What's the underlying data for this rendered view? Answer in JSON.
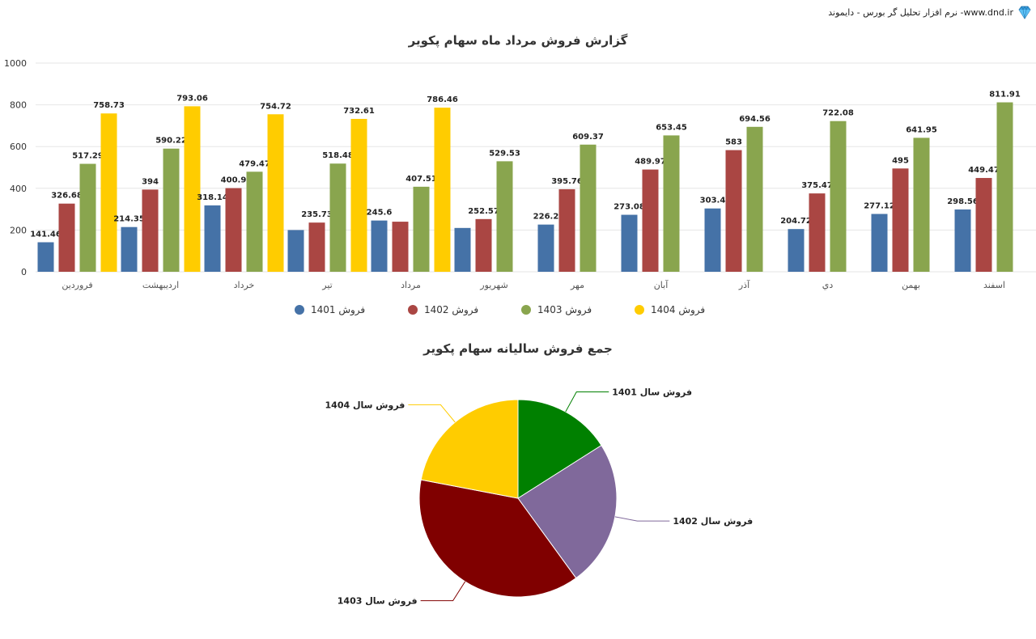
{
  "brand": {
    "text": "نرم افزار تحلیل گر بورس - دایموند -www.dnd.ir",
    "logo_icon": "diamond-icon"
  },
  "colors": {
    "s1401": "#4572a7",
    "s1402": "#aa4643",
    "s1403": "#89a54e",
    "s1404": "#ffcc00",
    "pie1401": "#008000",
    "pie1402": "#80699b",
    "pie1403": "#800000",
    "pie1404": "#ffcc00"
  },
  "chart_data": [
    {
      "type": "bar",
      "title": "گزارش فروش مرداد ماه سهام پکویر",
      "categories": [
        "فروردین",
        "اردیبهشت",
        "خرداد",
        "تیر",
        "مرداد",
        "شهریور",
        "مهر",
        "آبان",
        "آذر",
        "دي",
        "بهمن",
        "اسفند"
      ],
      "series": [
        {
          "name": "فروش 1401",
          "color": "#4572a7",
          "values": [
            141.46,
            214.35,
            318.14,
            200,
            245.6,
            210,
            226.2,
            273.08,
            303.4,
            204.72,
            277.12,
            298.56
          ],
          "labels": [
            "141.46",
            "214.35",
            "318.14",
            "",
            "245.6",
            "",
            "226.2",
            "273.08",
            "303.4",
            "204.72",
            "277.12",
            "298.56"
          ]
        },
        {
          "name": "فروش 1402",
          "color": "#aa4643",
          "values": [
            326.68,
            394,
            400.9,
            235.73,
            240,
            252.57,
            395.76,
            489.97,
            583,
            375.47,
            495,
            449.47
          ],
          "labels": [
            "326.68",
            "394",
            "400.9",
            "235.73",
            "",
            "252.57",
            "395.76",
            "489.97",
            "583",
            "375.47",
            "495",
            "449.47"
          ]
        },
        {
          "name": "فروش 1403",
          "color": "#89a54e",
          "values": [
            517.29,
            590.22,
            479.47,
            518.48,
            407.51,
            529.53,
            609.37,
            653.45,
            694.56,
            722.08,
            641.95,
            811.91
          ],
          "labels": [
            "517.29",
            "590.22",
            "479.47",
            "518.48",
            "407.51",
            "529.53",
            "609.37",
            "653.45",
            "694.56",
            "722.08",
            "641.95",
            "811.91"
          ]
        },
        {
          "name": "فروش 1404",
          "color": "#ffcc00",
          "values": [
            758.73,
            793.06,
            754.72,
            732.61,
            786.46,
            null,
            null,
            null,
            null,
            null,
            null,
            null
          ],
          "labels": [
            "758.73",
            "793.06",
            "754.72",
            "732.61",
            "786.46",
            "",
            "",
            "",
            "",
            "",
            "",
            ""
          ]
        }
      ],
      "ylim": [
        0,
        1000
      ],
      "yticks": [
        "0",
        "200",
        "400",
        "600",
        "800",
        "1000"
      ],
      "legend_position": "bottom",
      "grid": true
    },
    {
      "type": "pie",
      "title": "جمع فروش سالیانه سهام پکویر",
      "slices": [
        {
          "label": "فروش سال 1401",
          "value": 16,
          "color": "#008000"
        },
        {
          "label": "فروش سال 1402",
          "value": 24,
          "color": "#80699b"
        },
        {
          "label": "فروش سال 1403",
          "value": 38,
          "color": "#800000"
        },
        {
          "label": "فروش سال 1404",
          "value": 22,
          "color": "#ffcc00"
        }
      ]
    }
  ]
}
